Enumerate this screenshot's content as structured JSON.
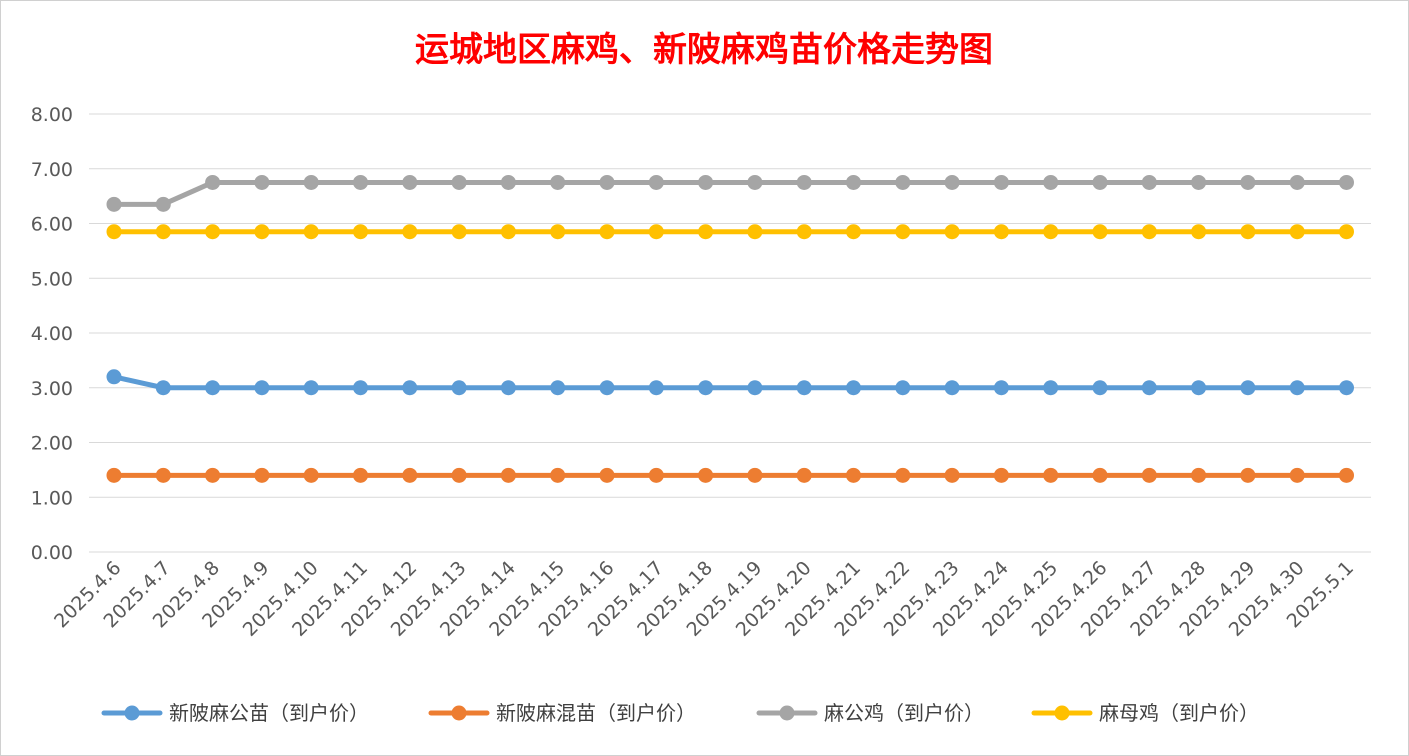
{
  "chart_data": {
    "type": "line",
    "title": "运城地区麻鸡、新陂麻鸡苗价格走势图",
    "xlabel": "",
    "ylabel": "",
    "ylim": [
      0,
      8
    ],
    "y_ticks": [
      "0.00",
      "1.00",
      "2.00",
      "3.00",
      "4.00",
      "5.00",
      "6.00",
      "7.00",
      "8.00"
    ],
    "grid": true,
    "legend_position": "bottom",
    "categories": [
      "2025.4.6",
      "2025.4.7",
      "2025.4.8",
      "2025.4.9",
      "2025.4.10",
      "2025.4.11",
      "2025.4.12",
      "2025.4.13",
      "2025.4.14",
      "2025.4.15",
      "2025.4.16",
      "2025.4.17",
      "2025.4.18",
      "2025.4.19",
      "2025.4.20",
      "2025.4.21",
      "2025.4.22",
      "2025.4.23",
      "2025.4.24",
      "2025.4.25",
      "2025.4.26",
      "2025.4.27",
      "2025.4.28",
      "2025.4.29",
      "2025.4.30",
      "2025.5.1"
    ],
    "series": [
      {
        "name": "新陂麻公苗（到户价）",
        "color": "#5b9bd5",
        "values": [
          3.2,
          3.0,
          3.0,
          3.0,
          3.0,
          3.0,
          3.0,
          3.0,
          3.0,
          3.0,
          3.0,
          3.0,
          3.0,
          3.0,
          3.0,
          3.0,
          3.0,
          3.0,
          3.0,
          3.0,
          3.0,
          3.0,
          3.0,
          3.0,
          3.0,
          3.0
        ]
      },
      {
        "name": "新陂麻混苗（到户价）",
        "color": "#ed7d31",
        "values": [
          1.4,
          1.4,
          1.4,
          1.4,
          1.4,
          1.4,
          1.4,
          1.4,
          1.4,
          1.4,
          1.4,
          1.4,
          1.4,
          1.4,
          1.4,
          1.4,
          1.4,
          1.4,
          1.4,
          1.4,
          1.4,
          1.4,
          1.4,
          1.4,
          1.4,
          1.4
        ]
      },
      {
        "name": "麻公鸡（到户价）",
        "color": "#a5a5a5",
        "values": [
          6.35,
          6.35,
          6.75,
          6.75,
          6.75,
          6.75,
          6.75,
          6.75,
          6.75,
          6.75,
          6.75,
          6.75,
          6.75,
          6.75,
          6.75,
          6.75,
          6.75,
          6.75,
          6.75,
          6.75,
          6.75,
          6.75,
          6.75,
          6.75,
          6.75,
          6.75
        ]
      },
      {
        "name": "麻母鸡（到户价）",
        "color": "#ffc000",
        "values": [
          5.85,
          5.85,
          5.85,
          5.85,
          5.85,
          5.85,
          5.85,
          5.85,
          5.85,
          5.85,
          5.85,
          5.85,
          5.85,
          5.85,
          5.85,
          5.85,
          5.85,
          5.85,
          5.85,
          5.85,
          5.85,
          5.85,
          5.85,
          5.85,
          5.85,
          5.85
        ]
      }
    ]
  }
}
